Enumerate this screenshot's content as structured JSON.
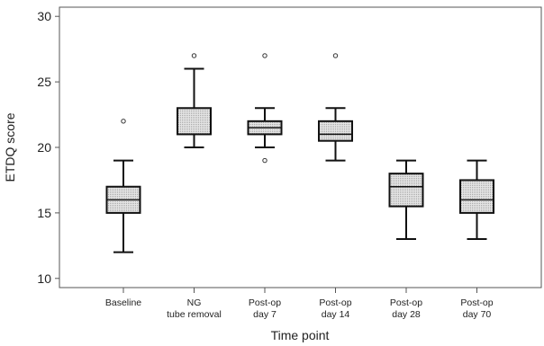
{
  "chart_data": {
    "type": "boxplot",
    "title": "",
    "xlabel": "Time point",
    "ylabel": "ETDQ score",
    "ylim": [
      9.3,
      30.7
    ],
    "yticks": [
      10,
      15,
      20,
      25,
      30
    ],
    "grid": false,
    "legend": "none",
    "categories": [
      [
        "Baseline"
      ],
      [
        "NG",
        "tube removal"
      ],
      [
        "Post-op",
        "day 7"
      ],
      [
        "Post-op",
        "day 14"
      ],
      [
        "Post-op",
        "day 28"
      ],
      [
        "Post-op",
        "day 70"
      ]
    ],
    "boxes": [
      {
        "whisker_low": 12,
        "q1": 15,
        "median": 16,
        "q3": 17,
        "whisker_high": 19,
        "outliers": [
          22
        ]
      },
      {
        "whisker_low": 20,
        "q1": 21,
        "median": 21,
        "q3": 23,
        "whisker_high": 26,
        "outliers": [
          27
        ]
      },
      {
        "whisker_low": 20,
        "q1": 21,
        "median": 21.5,
        "q3": 22,
        "whisker_high": 23,
        "outliers": [
          19,
          27
        ]
      },
      {
        "whisker_low": 19,
        "q1": 20.5,
        "median": 21,
        "q3": 22,
        "whisker_high": 23,
        "outliers": [
          27
        ]
      },
      {
        "whisker_low": 13,
        "q1": 15.5,
        "median": 17,
        "q3": 18,
        "whisker_high": 19,
        "outliers": []
      },
      {
        "whisker_low": 13,
        "q1": 15,
        "median": 16,
        "q3": 17.5,
        "whisker_high": 19,
        "outliers": []
      }
    ],
    "colors": {
      "box_fill": "#d6d6d6",
      "stroke": "#111111",
      "axis": "#555555"
    }
  }
}
